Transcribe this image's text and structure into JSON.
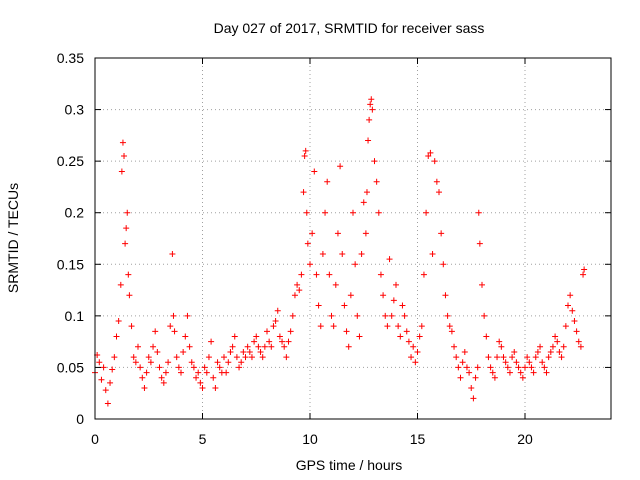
{
  "chart_data": {
    "type": "scatter",
    "title": "Day 027 of 2017, SRMTID for receiver sass",
    "xlabel": "GPS time / hours",
    "ylabel": "SRMTID / TECUs",
    "xlim": [
      0,
      24
    ],
    "ylim": [
      0,
      0.35
    ],
    "xticks": [
      0,
      5,
      10,
      15,
      20
    ],
    "xtick_labels": [
      "0",
      "5",
      "10",
      "15",
      "20"
    ],
    "yticks": [
      0,
      0.05,
      0.1,
      0.15,
      0.2,
      0.25,
      0.3,
      0.35
    ],
    "ytick_labels": [
      "0",
      "0.05",
      "0.1",
      "0.15",
      "0.2",
      "0.25",
      "0.3",
      "0.35"
    ],
    "grid": true,
    "marker": "plus",
    "color": "#ff0000",
    "series": [
      {
        "name": "sass",
        "x": [
          0.0,
          0.1,
          0.2,
          0.3,
          0.4,
          0.5,
          0.6,
          0.7,
          0.8,
          0.9,
          1.0,
          1.1,
          1.2,
          1.25,
          1.3,
          1.35,
          1.4,
          1.45,
          1.5,
          1.55,
          1.6,
          1.7,
          1.8,
          1.9,
          2.0,
          2.1,
          2.2,
          2.3,
          2.4,
          2.5,
          2.6,
          2.7,
          2.8,
          2.9,
          3.0,
          3.1,
          3.2,
          3.3,
          3.4,
          3.5,
          3.6,
          3.65,
          3.7,
          3.8,
          3.9,
          4.0,
          4.1,
          4.2,
          4.3,
          4.4,
          4.5,
          4.6,
          4.7,
          4.8,
          4.9,
          5.0,
          5.1,
          5.2,
          5.3,
          5.4,
          5.5,
          5.6,
          5.7,
          5.8,
          5.9,
          6.0,
          6.1,
          6.2,
          6.3,
          6.4,
          6.5,
          6.6,
          6.7,
          6.8,
          6.9,
          7.0,
          7.1,
          7.2,
          7.3,
          7.4,
          7.5,
          7.6,
          7.7,
          7.8,
          7.9,
          8.0,
          8.1,
          8.2,
          8.3,
          8.4,
          8.5,
          8.6,
          8.7,
          8.8,
          8.9,
          9.0,
          9.1,
          9.2,
          9.3,
          9.4,
          9.5,
          9.6,
          9.7,
          9.75,
          9.8,
          9.85,
          9.9,
          10.0,
          10.1,
          10.2,
          10.3,
          10.4,
          10.5,
          10.6,
          10.7,
          10.8,
          10.9,
          11.0,
          11.1,
          11.2,
          11.3,
          11.4,
          11.5,
          11.6,
          11.7,
          11.8,
          11.9,
          12.0,
          12.1,
          12.2,
          12.3,
          12.4,
          12.5,
          12.6,
          12.65,
          12.7,
          12.75,
          12.8,
          12.85,
          12.9,
          13.0,
          13.1,
          13.2,
          13.3,
          13.4,
          13.5,
          13.6,
          13.7,
          13.8,
          13.9,
          14.0,
          14.1,
          14.2,
          14.3,
          14.4,
          14.5,
          14.6,
          14.7,
          14.8,
          14.9,
          15.0,
          15.1,
          15.2,
          15.3,
          15.4,
          15.5,
          15.6,
          15.7,
          15.8,
          15.9,
          16.0,
          16.1,
          16.2,
          16.3,
          16.4,
          16.5,
          16.6,
          16.7,
          16.8,
          16.9,
          17.0,
          17.1,
          17.2,
          17.3,
          17.4,
          17.5,
          17.6,
          17.7,
          17.8,
          17.85,
          17.9,
          18.0,
          18.1,
          18.2,
          18.3,
          18.4,
          18.5,
          18.6,
          18.7,
          18.8,
          18.9,
          19.0,
          19.1,
          19.2,
          19.3,
          19.4,
          19.5,
          19.6,
          19.7,
          19.8,
          19.9,
          20.0,
          20.1,
          20.2,
          20.3,
          20.4,
          20.5,
          20.6,
          20.7,
          20.8,
          20.9,
          21.0,
          21.1,
          21.2,
          21.3,
          21.4,
          21.5,
          21.6,
          21.7,
          21.8,
          21.9,
          22.0,
          22.1,
          22.2,
          22.3,
          22.4,
          22.5,
          22.6,
          22.7,
          22.75
        ],
        "y": [
          0.045,
          0.062,
          0.055,
          0.038,
          0.05,
          0.028,
          0.015,
          0.035,
          0.048,
          0.06,
          0.08,
          0.095,
          0.13,
          0.24,
          0.268,
          0.255,
          0.17,
          0.185,
          0.2,
          0.14,
          0.12,
          0.09,
          0.06,
          0.055,
          0.07,
          0.05,
          0.04,
          0.03,
          0.045,
          0.06,
          0.055,
          0.07,
          0.085,
          0.065,
          0.05,
          0.04,
          0.035,
          0.045,
          0.055,
          0.09,
          0.16,
          0.1,
          0.085,
          0.06,
          0.05,
          0.045,
          0.065,
          0.08,
          0.1,
          0.07,
          0.055,
          0.05,
          0.04,
          0.045,
          0.035,
          0.03,
          0.05,
          0.045,
          0.06,
          0.075,
          0.04,
          0.03,
          0.055,
          0.05,
          0.045,
          0.06,
          0.045,
          0.055,
          0.065,
          0.07,
          0.08,
          0.06,
          0.05,
          0.055,
          0.065,
          0.06,
          0.07,
          0.065,
          0.06,
          0.075,
          0.08,
          0.07,
          0.065,
          0.06,
          0.07,
          0.085,
          0.075,
          0.07,
          0.09,
          0.095,
          0.105,
          0.08,
          0.075,
          0.07,
          0.06,
          0.075,
          0.085,
          0.1,
          0.12,
          0.13,
          0.125,
          0.14,
          0.22,
          0.255,
          0.26,
          0.2,
          0.17,
          0.15,
          0.18,
          0.24,
          0.14,
          0.11,
          0.09,
          0.16,
          0.2,
          0.23,
          0.14,
          0.1,
          0.09,
          0.13,
          0.18,
          0.245,
          0.16,
          0.11,
          0.085,
          0.07,
          0.12,
          0.2,
          0.15,
          0.1,
          0.08,
          0.16,
          0.21,
          0.18,
          0.22,
          0.27,
          0.29,
          0.305,
          0.31,
          0.3,
          0.25,
          0.23,
          0.2,
          0.14,
          0.12,
          0.1,
          0.09,
          0.155,
          0.1,
          0.115,
          0.13,
          0.09,
          0.08,
          0.11,
          0.1,
          0.085,
          0.075,
          0.06,
          0.07,
          0.055,
          0.065,
          0.08,
          0.09,
          0.14,
          0.2,
          0.255,
          0.258,
          0.16,
          0.25,
          0.23,
          0.22,
          0.18,
          0.15,
          0.12,
          0.1,
          0.09,
          0.085,
          0.07,
          0.06,
          0.05,
          0.04,
          0.055,
          0.065,
          0.05,
          0.045,
          0.03,
          0.02,
          0.04,
          0.05,
          0.2,
          0.17,
          0.13,
          0.1,
          0.08,
          0.06,
          0.05,
          0.045,
          0.04,
          0.06,
          0.075,
          0.07,
          0.06,
          0.055,
          0.05,
          0.045,
          0.06,
          0.065,
          0.055,
          0.05,
          0.045,
          0.04,
          0.05,
          0.06,
          0.055,
          0.05,
          0.045,
          0.06,
          0.065,
          0.07,
          0.055,
          0.05,
          0.045,
          0.06,
          0.065,
          0.07,
          0.08,
          0.075,
          0.065,
          0.06,
          0.07,
          0.09,
          0.11,
          0.12,
          0.105,
          0.095,
          0.085,
          0.075,
          0.07,
          0.14,
          0.145
        ]
      }
    ]
  }
}
